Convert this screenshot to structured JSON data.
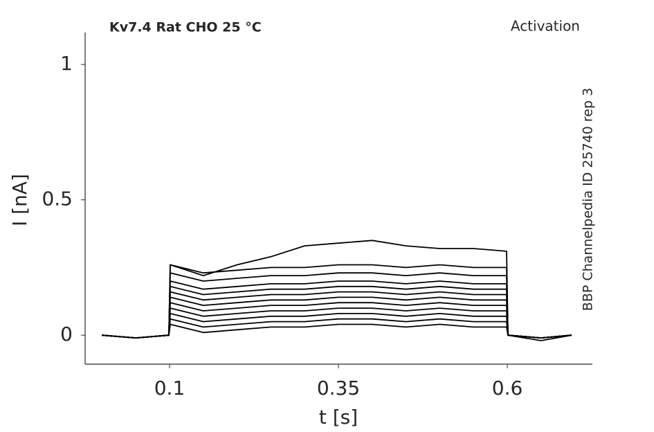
{
  "chart_data": {
    "type": "line",
    "title": "Kv7.4  Rat  CHO  25 °C",
    "subtitle": "Activation",
    "annotation": "BBP Channelpedia ID 25740 rep 3",
    "x_label": "t [s]",
    "y_label": "I [nA]",
    "x": [
      0,
      0.05,
      0.099,
      0.101,
      0.15,
      0.2,
      0.25,
      0.3,
      0.35,
      0.4,
      0.45,
      0.5,
      0.55,
      0.599,
      0.601,
      0.65,
      0.695
    ],
    "series": [
      {
        "color": "#000000",
        "values": [
          0,
          -0.01,
          0,
          0.26,
          0.22,
          0.26,
          0.29,
          0.33,
          0.34,
          0.35,
          0.33,
          0.32,
          0.32,
          0.31,
          0,
          -0.02,
          0
        ]
      },
      {
        "color": "#000000",
        "values": [
          0,
          -0.01,
          0,
          0.26,
          0.23,
          0.24,
          0.25,
          0.25,
          0.26,
          0.26,
          0.25,
          0.26,
          0.25,
          0.25,
          0,
          -0.01,
          0
        ]
      },
      {
        "color": "#000000",
        "values": [
          0,
          -0.01,
          0,
          0.23,
          0.2,
          0.21,
          0.22,
          0.22,
          0.23,
          0.23,
          0.22,
          0.23,
          0.22,
          0.22,
          0,
          -0.01,
          0
        ]
      },
      {
        "color": "#000000",
        "values": [
          0,
          -0.01,
          0,
          0.2,
          0.17,
          0.18,
          0.19,
          0.19,
          0.2,
          0.2,
          0.19,
          0.2,
          0.19,
          0.19,
          0,
          -0.01,
          0
        ]
      },
      {
        "color": "#000000",
        "values": [
          0,
          -0.01,
          0,
          0.18,
          0.15,
          0.16,
          0.17,
          0.17,
          0.18,
          0.18,
          0.17,
          0.18,
          0.17,
          0.17,
          0,
          -0.01,
          0
        ]
      },
      {
        "color": "#000000",
        "values": [
          0,
          -0.01,
          0,
          0.16,
          0.13,
          0.14,
          0.15,
          0.15,
          0.16,
          0.16,
          0.15,
          0.16,
          0.15,
          0.15,
          0,
          -0.01,
          0
        ]
      },
      {
        "color": "#000000",
        "values": [
          0,
          -0.01,
          0,
          0.14,
          0.11,
          0.12,
          0.13,
          0.13,
          0.14,
          0.14,
          0.13,
          0.14,
          0.13,
          0.13,
          0,
          -0.01,
          0
        ]
      },
      {
        "color": "#000000",
        "values": [
          0,
          -0.01,
          0,
          0.12,
          0.09,
          0.1,
          0.11,
          0.11,
          0.12,
          0.12,
          0.11,
          0.12,
          0.11,
          0.11,
          0,
          -0.01,
          0
        ]
      },
      {
        "color": "#000000",
        "values": [
          0,
          -0.01,
          0,
          0.1,
          0.07,
          0.08,
          0.09,
          0.09,
          0.1,
          0.1,
          0.09,
          0.1,
          0.09,
          0.09,
          0,
          -0.01,
          0
        ]
      },
      {
        "color": "#000000",
        "values": [
          0,
          -0.01,
          0,
          0.08,
          0.05,
          0.06,
          0.07,
          0.07,
          0.08,
          0.08,
          0.07,
          0.08,
          0.07,
          0.07,
          0,
          -0.01,
          0
        ]
      },
      {
        "color": "#000000",
        "values": [
          0,
          -0.01,
          0,
          0.06,
          0.03,
          0.04,
          0.05,
          0.05,
          0.06,
          0.06,
          0.05,
          0.06,
          0.05,
          0.05,
          0,
          -0.01,
          0
        ]
      },
      {
        "color": "#000000",
        "values": [
          0,
          -0.01,
          0,
          0.04,
          0.01,
          0.02,
          0.03,
          0.03,
          0.04,
          0.04,
          0.03,
          0.04,
          0.03,
          0.03,
          0,
          -0.01,
          0
        ]
      }
    ],
    "xlim": [
      -0.025,
      0.726
    ],
    "ylim": [
      -0.107,
      1.118
    ],
    "xticks": [
      0.1,
      0.35,
      0.6
    ],
    "yticks": [
      0,
      0.5,
      1
    ],
    "grid": false
  }
}
